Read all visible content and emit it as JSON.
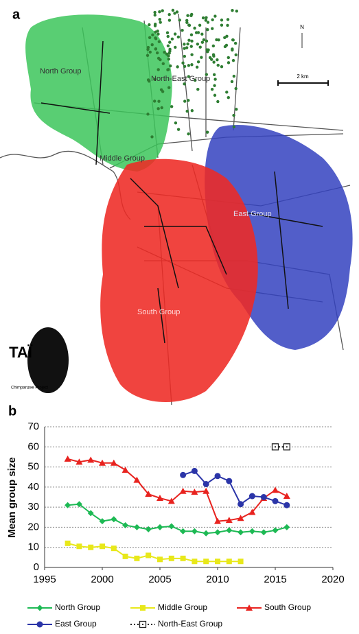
{
  "map": {
    "panel_label": "a",
    "group_labels": [
      "North Group",
      "North-East Group",
      "Middle Group",
      "East Group",
      "South Group"
    ],
    "north": "N",
    "scale": "2 km",
    "logo_title": "TAÏ",
    "logo_subtitle": "Chimpanzee Project"
  },
  "chart_data": {
    "type": "line",
    "panel_label": "b",
    "y_label": "Mean group size",
    "x": [
      1997,
      1998,
      1999,
      2000,
      2001,
      2002,
      2003,
      2004,
      2005,
      2006,
      2007,
      2008,
      2009,
      2010,
      2011,
      2012,
      2013,
      2014,
      2015,
      2016
    ],
    "series": [
      {
        "name": "North Group",
        "color": "#1db954",
        "marker": "diamond",
        "values": [
          31,
          31.5,
          27,
          23,
          24,
          21,
          20,
          19,
          20,
          20.5,
          18,
          18,
          17,
          17.5,
          18.5,
          17.5,
          18,
          17.5,
          18.5,
          20
        ]
      },
      {
        "name": "Middle Group",
        "color": "#e8e81a",
        "marker": "square",
        "values": [
          12,
          10.5,
          10,
          10.5,
          9.5,
          5.5,
          4.5,
          6,
          4,
          4.5,
          4.5,
          3,
          3,
          3,
          3,
          3,
          null,
          null,
          null,
          null
        ]
      },
      {
        "name": "South Group",
        "color": "#e8231f",
        "marker": "triangle",
        "values": [
          54,
          52.5,
          53.5,
          52,
          52,
          48.5,
          43.5,
          36.5,
          34.5,
          33,
          38,
          37.5,
          38,
          23,
          23.5,
          24.5,
          27.5,
          34.5,
          38.5,
          35.5
        ]
      },
      {
        "name": "East Group",
        "color": "#2b35a8",
        "marker": "circle",
        "values": [
          null,
          null,
          null,
          null,
          null,
          null,
          null,
          null,
          null,
          null,
          46,
          48,
          41.5,
          45.5,
          43,
          31.5,
          35.5,
          35,
          33,
          31
        ]
      },
      {
        "name": "North-East Group",
        "color": "#222222",
        "marker": "open-square",
        "dash": true,
        "values": [
          null,
          null,
          null,
          null,
          null,
          null,
          null,
          null,
          null,
          null,
          null,
          null,
          null,
          null,
          null,
          null,
          null,
          null,
          60,
          60
        ]
      }
    ],
    "xlim": [
      1995,
      2020
    ],
    "xticks": [
      1995,
      2000,
      2005,
      2010,
      2015,
      2020
    ],
    "ylim": [
      0,
      70
    ],
    "yticks": [
      0,
      10,
      20,
      30,
      40,
      50,
      60,
      70
    ],
    "grid": true
  }
}
